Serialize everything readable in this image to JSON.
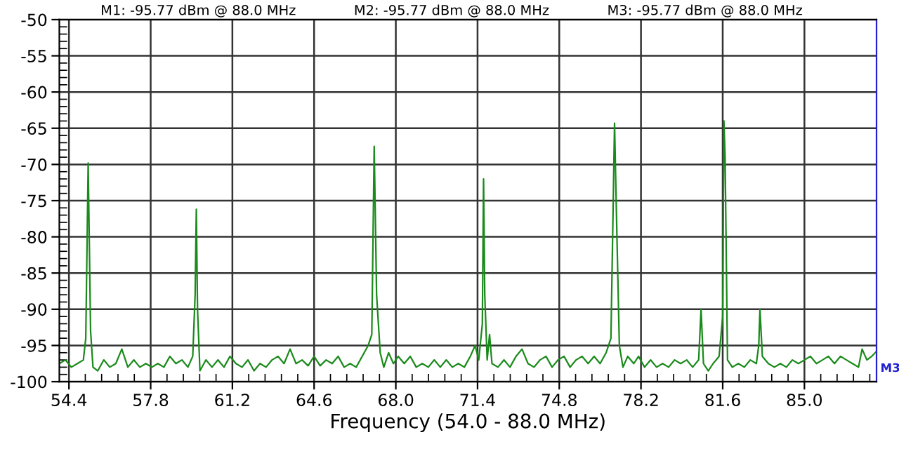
{
  "chart_data": {
    "type": "line",
    "xlabel": "Frequency (54.0 - 88.0 MHz)",
    "annotations": [
      "M1: -95.77 dBm @ 88.0 MHz",
      "M2: -95.77 dBm @ 88.0 MHz",
      "M3: -95.77 dBm @ 88.0 MHz",
      {
        "text": "M3",
        "x": 88.0,
        "y": -95.8
      }
    ],
    "xlim": [
      54.0,
      88.0
    ],
    "ylim": [
      -100,
      -50
    ],
    "xticks": [
      54.4,
      57.8,
      61.2,
      64.6,
      {
        "value": 68,
        "label": "68.0"
      },
      71.4,
      74.8,
      78.2,
      81.6,
      {
        "value": 85,
        "label": "85.0"
      }
    ],
    "yticks": [
      -100,
      -95,
      -90,
      -85,
      -80,
      -75,
      -70,
      -65,
      -60,
      -55,
      -50
    ],
    "grid": true,
    "marker": "none",
    "line_style": "solid",
    "series": [
      {
        "color": "#1a8a1a",
        "x": [
          54.0,
          54.25,
          54.5,
          54.75,
          55.0,
          55.1,
          55.2,
          55.3,
          55.4,
          55.6,
          55.85,
          56.1,
          56.35,
          56.6,
          56.85,
          57.1,
          57.35,
          57.6,
          57.85,
          58.1,
          58.35,
          58.6,
          58.85,
          59.1,
          59.35,
          59.55,
          59.65,
          59.7,
          59.75,
          59.85,
          60.1,
          60.35,
          60.6,
          60.85,
          61.1,
          61.35,
          61.6,
          61.85,
          62.1,
          62.35,
          62.6,
          62.85,
          63.1,
          63.35,
          63.6,
          63.85,
          64.1,
          64.35,
          64.6,
          64.85,
          65.1,
          65.35,
          65.6,
          65.85,
          66.1,
          66.35,
          66.6,
          66.85,
          67.0,
          67.1,
          67.2,
          67.35,
          67.5,
          67.7,
          67.9,
          68.1,
          68.35,
          68.6,
          68.85,
          69.1,
          69.35,
          69.6,
          69.85,
          70.1,
          70.35,
          70.6,
          70.85,
          71.1,
          71.3,
          71.45,
          71.6,
          71.65,
          71.7,
          71.8,
          71.9,
          72.0,
          72.25,
          72.5,
          72.75,
          73.0,
          73.25,
          73.5,
          73.75,
          74.0,
          74.25,
          74.5,
          74.75,
          75.0,
          75.25,
          75.5,
          75.75,
          76.0,
          76.25,
          76.5,
          76.75,
          76.95,
          77.1,
          77.2,
          77.3,
          77.45,
          77.65,
          77.9,
          78.1,
          78.35,
          78.6,
          78.85,
          79.1,
          79.35,
          79.6,
          79.85,
          80.1,
          80.35,
          80.6,
          80.7,
          80.8,
          81.0,
          81.2,
          81.45,
          81.6,
          81.65,
          81.7,
          81.8,
          82.0,
          82.25,
          82.5,
          82.75,
          83.0,
          83.1,
          83.15,
          83.25,
          83.5,
          83.75,
          84.0,
          84.25,
          84.5,
          84.75,
          85.0,
          85.25,
          85.5,
          85.75,
          86.0,
          86.25,
          86.5,
          86.75,
          87.0,
          87.25,
          87.4,
          87.6,
          87.8,
          88.0
        ],
        "values": [
          -97.5,
          -97,
          -98,
          -97.5,
          -97,
          -94,
          -69.8,
          -93,
          -98,
          -98.5,
          -97,
          -98,
          -97.5,
          -95.5,
          -98,
          -97,
          -98,
          -97.5,
          -98,
          -97.5,
          -98,
          -96.5,
          -97.5,
          -97,
          -98,
          -96.5,
          -88,
          -76.2,
          -90,
          -98.5,
          -97,
          -98,
          -97,
          -98,
          -96.5,
          -97.5,
          -98,
          -97,
          -98.5,
          -97.5,
          -98,
          -97,
          -96.5,
          -97.5,
          -95.5,
          -97.5,
          -97,
          -97.8,
          -96.5,
          -97.8,
          -97,
          -97.5,
          -96.5,
          -98,
          -97.5,
          -98,
          -96.5,
          -95,
          -93.5,
          -67.5,
          -88,
          -96,
          -98,
          -96,
          -97.5,
          -96.5,
          -97.5,
          -96.5,
          -98,
          -97.5,
          -98,
          -97,
          -98,
          -97,
          -98,
          -97.5,
          -98,
          -96.5,
          -95,
          -97,
          -92,
          -72,
          -88,
          -97,
          -93.5,
          -97.5,
          -98,
          -97,
          -98,
          -96.5,
          -95.5,
          -97.5,
          -98,
          -97,
          -96.5,
          -98,
          -97,
          -96.5,
          -98,
          -97,
          -96.5,
          -97.5,
          -96.5,
          -97.5,
          -96,
          -94,
          -64.3,
          -80,
          -95,
          -98,
          -96.5,
          -97.5,
          -96.5,
          -98,
          -97,
          -98,
          -97.5,
          -98,
          -97,
          -97.5,
          -97,
          -98,
          -97,
          -90,
          -97.5,
          -98.5,
          -97.5,
          -96.5,
          -91,
          -64,
          -69,
          -97,
          -98,
          -97.5,
          -98,
          -97,
          -97.5,
          -95,
          -90,
          -96.5,
          -97.5,
          -98,
          -97.5,
          -98,
          -97,
          -97.5,
          -97,
          -96.5,
          -97.5,
          -97,
          -96.5,
          -97.5,
          -96.5,
          -97,
          -97.5,
          -98,
          -95.5,
          -97,
          -96.5,
          -95.8
        ]
      }
    ]
  }
}
